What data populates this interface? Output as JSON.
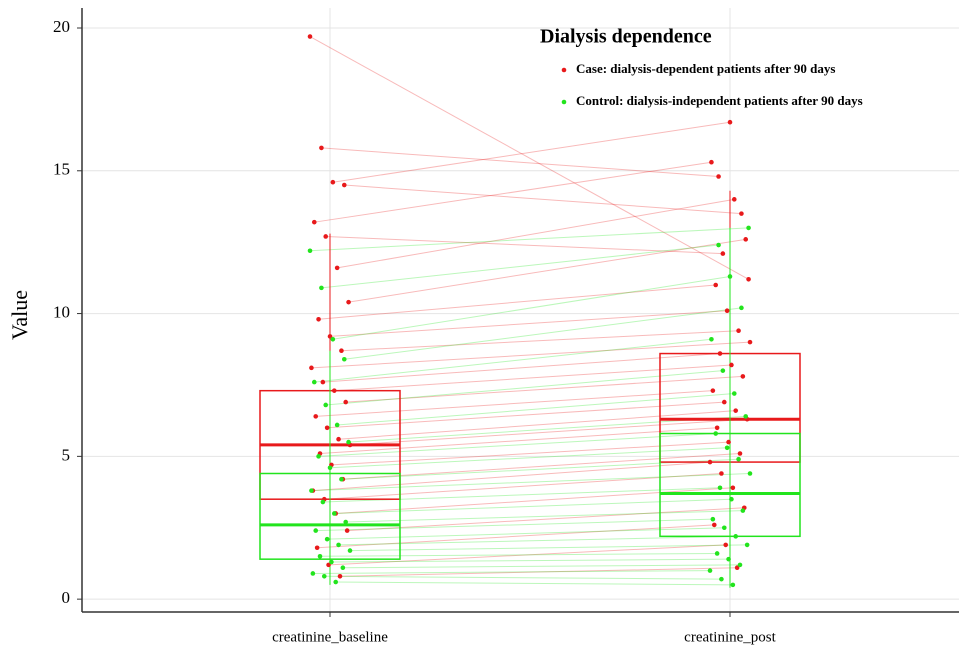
{
  "chart_data": {
    "type": "box",
    "y_label": "Value",
    "categories": [
      "creatinine_baseline",
      "creatinine_post"
    ],
    "ylim": [
      -0.45,
      20.7
    ],
    "yticks": [
      0,
      5,
      10,
      15,
      20
    ],
    "grid": true,
    "legend": {
      "title": "Dialysis dependence",
      "position": "top-right"
    },
    "series": [
      {
        "name": "Case: dialysis-dependent patients after 90 days",
        "color": "#e8191b",
        "box": {
          "q1": [
            3.5,
            4.8
          ],
          "median": [
            5.4,
            6.3
          ],
          "q3": [
            7.3,
            8.6
          ],
          "whisker_low": [
            0.6,
            0.7
          ],
          "whisker_high": [
            12.8,
            14.3
          ]
        },
        "baseline": [
          19.7,
          15.8,
          14.6,
          14.5,
          13.2,
          12.7,
          11.6,
          10.4,
          9.8,
          9.2,
          8.7,
          8.1,
          7.6,
          7.3,
          6.9,
          6.4,
          6.0,
          5.6,
          5.4,
          5.1,
          4.7,
          4.2,
          3.8,
          3.5,
          3.0,
          2.4,
          1.8,
          1.2,
          0.8
        ],
        "post": [
          11.2,
          14.8,
          16.7,
          13.5,
          15.3,
          12.1,
          14.0,
          12.6,
          11.0,
          10.1,
          9.4,
          9.0,
          8.6,
          8.2,
          7.8,
          7.3,
          6.9,
          6.6,
          6.3,
          6.0,
          5.5,
          5.1,
          4.8,
          4.4,
          3.9,
          3.2,
          2.6,
          1.9,
          1.1
        ]
      },
      {
        "name": "Control: dialysis-independent patients after 90 days",
        "color": "#22e41d",
        "box": {
          "q1": [
            1.4,
            2.2
          ],
          "median": [
            2.6,
            3.7
          ],
          "q3": [
            4.4,
            5.8
          ],
          "whisker_low": [
            0.5,
            0.4
          ],
          "whisker_high": [
            8.7,
            13.0
          ]
        },
        "baseline": [
          12.2,
          10.9,
          9.1,
          8.4,
          7.6,
          6.8,
          6.1,
          5.5,
          5.0,
          4.6,
          4.2,
          3.8,
          3.4,
          3.0,
          2.7,
          2.4,
          2.1,
          1.9,
          1.7,
          1.5,
          1.3,
          1.1,
          0.9,
          0.8,
          0.6
        ],
        "post": [
          13.0,
          12.4,
          11.3,
          10.2,
          9.1,
          8.0,
          7.2,
          6.4,
          5.8,
          5.3,
          4.9,
          4.4,
          3.9,
          3.5,
          3.1,
          2.8,
          2.5,
          2.2,
          1.9,
          1.6,
          1.4,
          1.2,
          1.0,
          0.7,
          0.5
        ]
      }
    ]
  }
}
